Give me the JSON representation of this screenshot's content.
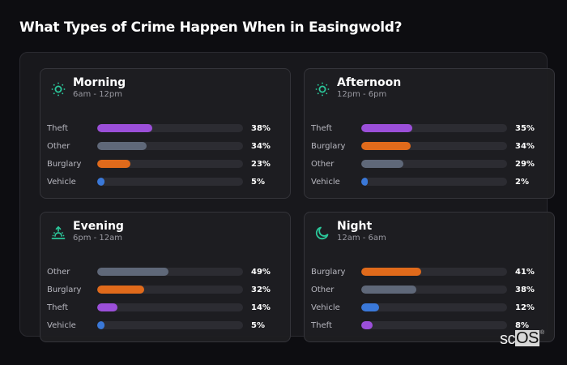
{
  "title": "What Types of Crime Happen When in Easingwold?",
  "colors": {
    "Theft": "#9b4fd9",
    "Other": "#5f6879",
    "Burglary": "#e06a1b",
    "Vehicle": "#3a78d8",
    "accent_icon": "#2bc79a"
  },
  "cards": [
    {
      "title": "Morning",
      "subtitle": "6am - 12pm",
      "icon": "sun-icon",
      "rows": [
        {
          "label": "Theft",
          "value": 38,
          "value_label": "38%"
        },
        {
          "label": "Other",
          "value": 34,
          "value_label": "34%"
        },
        {
          "label": "Burglary",
          "value": 23,
          "value_label": "23%"
        },
        {
          "label": "Vehicle",
          "value": 5,
          "value_label": "5%"
        }
      ]
    },
    {
      "title": "Afternoon",
      "subtitle": "12pm - 6pm",
      "icon": "sun-icon",
      "rows": [
        {
          "label": "Theft",
          "value": 35,
          "value_label": "35%"
        },
        {
          "label": "Burglary",
          "value": 34,
          "value_label": "34%"
        },
        {
          "label": "Other",
          "value": 29,
          "value_label": "29%"
        },
        {
          "label": "Vehicle",
          "value": 2,
          "value_label": "2%"
        }
      ]
    },
    {
      "title": "Evening",
      "subtitle": "6pm - 12am",
      "icon": "sunset-icon",
      "rows": [
        {
          "label": "Other",
          "value": 49,
          "value_label": "49%"
        },
        {
          "label": "Burglary",
          "value": 32,
          "value_label": "32%"
        },
        {
          "label": "Theft",
          "value": 14,
          "value_label": "14%"
        },
        {
          "label": "Vehicle",
          "value": 5,
          "value_label": "5%"
        }
      ]
    },
    {
      "title": "Night",
      "subtitle": "12am - 6am",
      "icon": "moon-icon",
      "rows": [
        {
          "label": "Burglary",
          "value": 41,
          "value_label": "41%"
        },
        {
          "label": "Other",
          "value": 38,
          "value_label": "38%"
        },
        {
          "label": "Vehicle",
          "value": 12,
          "value_label": "12%"
        },
        {
          "label": "Theft",
          "value": 8,
          "value_label": "8%"
        }
      ]
    }
  ],
  "logo": {
    "sc": "sc",
    "os": "OS",
    "reg": "®"
  },
  "chart_data": [
    {
      "type": "bar",
      "title": "Morning",
      "subtitle": "6am - 12pm",
      "categories": [
        "Theft",
        "Other",
        "Burglary",
        "Vehicle"
      ],
      "values": [
        38,
        34,
        23,
        5
      ],
      "unit": "%",
      "orientation": "horizontal",
      "xlim": [
        0,
        100
      ]
    },
    {
      "type": "bar",
      "title": "Afternoon",
      "subtitle": "12pm - 6pm",
      "categories": [
        "Theft",
        "Burglary",
        "Other",
        "Vehicle"
      ],
      "values": [
        35,
        34,
        29,
        2
      ],
      "unit": "%",
      "orientation": "horizontal",
      "xlim": [
        0,
        100
      ]
    },
    {
      "type": "bar",
      "title": "Evening",
      "subtitle": "6pm - 12am",
      "categories": [
        "Other",
        "Burglary",
        "Theft",
        "Vehicle"
      ],
      "values": [
        49,
        32,
        14,
        5
      ],
      "unit": "%",
      "orientation": "horizontal",
      "xlim": [
        0,
        100
      ]
    },
    {
      "type": "bar",
      "title": "Night",
      "subtitle": "12am - 6am",
      "categories": [
        "Burglary",
        "Other",
        "Vehicle",
        "Theft"
      ],
      "values": [
        41,
        38,
        12,
        8
      ],
      "unit": "%",
      "orientation": "horizontal",
      "xlim": [
        0,
        100
      ]
    }
  ]
}
